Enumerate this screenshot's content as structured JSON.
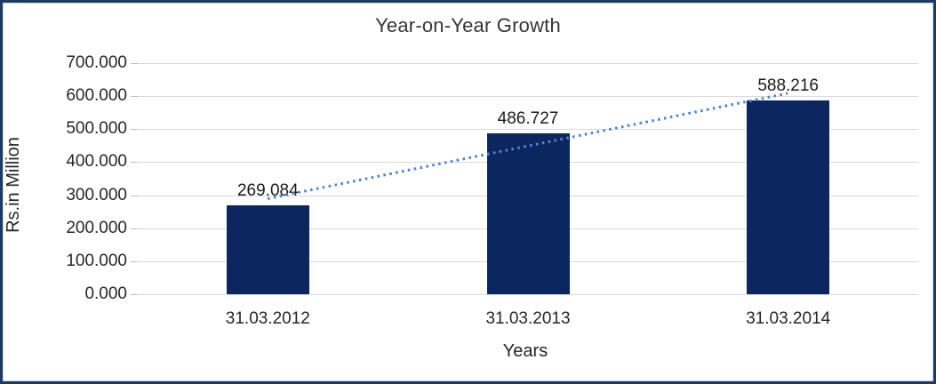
{
  "frame": {
    "outer_border_color": "#1B3A66",
    "inner_border_color": "#D9D9D9",
    "background": "#FFFFFF"
  },
  "chart_data": {
    "type": "bar",
    "title": "Year-on-Year Growth",
    "xlabel": "Years",
    "ylabel": "Rs.in Million",
    "categories": [
      "31.03.2012",
      "31.03.2013",
      "31.03.2014"
    ],
    "values": [
      269.084,
      486.727,
      588.216
    ],
    "data_labels": [
      "269.084",
      "486.727",
      "588.216"
    ],
    "y_ticks": [
      "0.000",
      "100.000",
      "200.000",
      "300.000",
      "400.000",
      "500.000",
      "600.000",
      "700.000"
    ],
    "ylim": [
      0,
      700
    ],
    "grid": true,
    "legend": "none",
    "bar_color": "#0C2760",
    "gridline_color": "#D9D9D9",
    "text_color": "#262626",
    "trendline": {
      "style": "dotted",
      "color": "#4A86D8",
      "fitted_values": [
        288.4,
        448.0,
        607.6
      ]
    }
  }
}
